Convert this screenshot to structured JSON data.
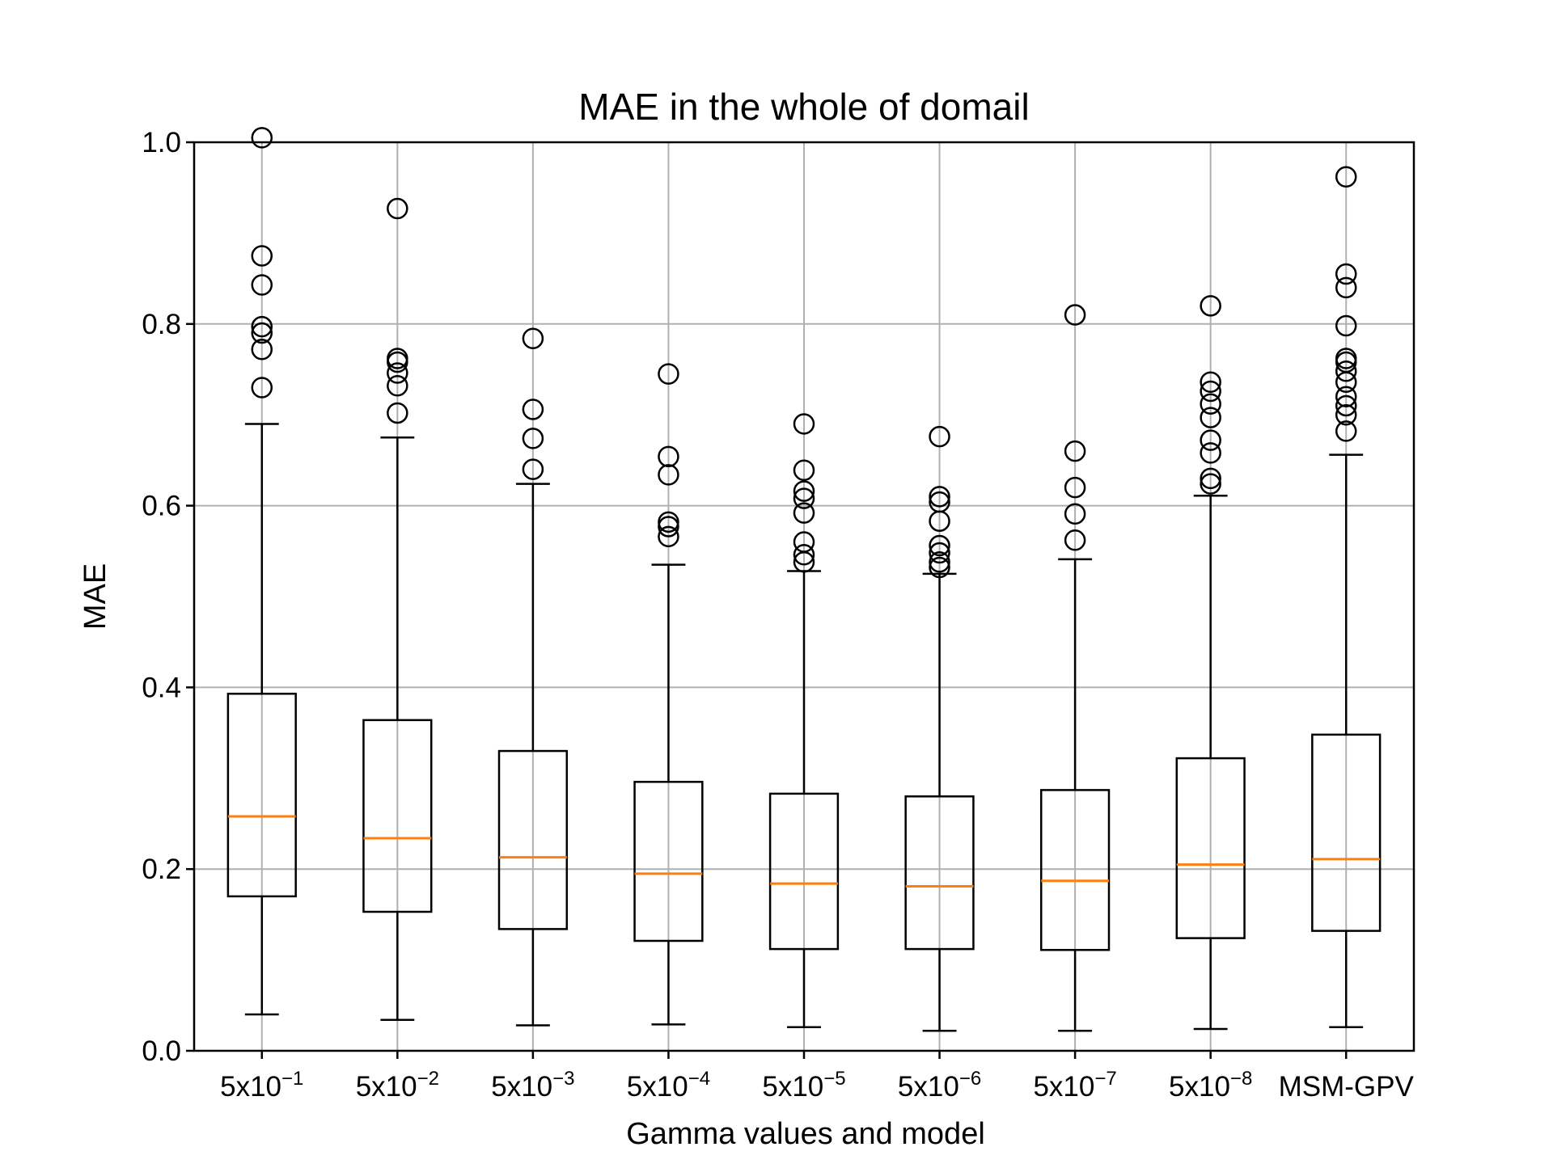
{
  "chart_data": {
    "type": "box",
    "title": "MAE in the whole of domail",
    "xlabel": "Gamma values and model",
    "ylabel": "MAE",
    "ylim": [
      0.0,
      1.0
    ],
    "yticks": [
      "0.0",
      "0.2",
      "0.4",
      "0.6",
      "0.8",
      "1.0"
    ],
    "grid": true,
    "colors": {
      "box": "#000000",
      "median": "#ff7f0e",
      "grid": "#b0b0b0"
    },
    "categories": [
      {
        "base": "5x10",
        "exp": "−1"
      },
      {
        "base": "5x10",
        "exp": "−2"
      },
      {
        "base": "5x10",
        "exp": "−3"
      },
      {
        "base": "5x10",
        "exp": "−4"
      },
      {
        "base": "5x10",
        "exp": "−5"
      },
      {
        "base": "5x10",
        "exp": "−6"
      },
      {
        "base": "5x10",
        "exp": "−7"
      },
      {
        "base": "5x10",
        "exp": "−8"
      },
      {
        "base": "MSM-GPV",
        "exp": ""
      }
    ],
    "boxes": [
      {
        "whislo": 0.04,
        "q1": 0.17,
        "med": 0.258,
        "q3": 0.393,
        "whishi": 0.69,
        "fliers": [
          0.73,
          0.772,
          0.79,
          0.797,
          0.843,
          0.875,
          1.005
        ]
      },
      {
        "whislo": 0.034,
        "q1": 0.153,
        "med": 0.234,
        "q3": 0.364,
        "whishi": 0.675,
        "fliers": [
          0.702,
          0.732,
          0.746,
          0.758,
          0.762,
          0.927
        ]
      },
      {
        "whislo": 0.028,
        "q1": 0.134,
        "med": 0.213,
        "q3": 0.33,
        "whishi": 0.624,
        "fliers": [
          0.64,
          0.674,
          0.706,
          0.784
        ]
      },
      {
        "whislo": 0.029,
        "q1": 0.121,
        "med": 0.195,
        "q3": 0.296,
        "whishi": 0.535,
        "fliers": [
          0.566,
          0.577,
          0.582,
          0.634,
          0.654,
          0.745
        ]
      },
      {
        "whislo": 0.026,
        "q1": 0.112,
        "med": 0.184,
        "q3": 0.283,
        "whishi": 0.528,
        "fliers": [
          0.538,
          0.546,
          0.56,
          0.592,
          0.608,
          0.616,
          0.639,
          0.69
        ]
      },
      {
        "whislo": 0.022,
        "q1": 0.112,
        "med": 0.181,
        "q3": 0.28,
        "whishi": 0.525,
        "fliers": [
          0.532,
          0.538,
          0.548,
          0.556,
          0.583,
          0.604,
          0.61,
          0.676
        ]
      },
      {
        "whislo": 0.022,
        "q1": 0.111,
        "med": 0.187,
        "q3": 0.287,
        "whishi": 0.541,
        "fliers": [
          0.562,
          0.591,
          0.62,
          0.66,
          0.81
        ]
      },
      {
        "whislo": 0.024,
        "q1": 0.124,
        "med": 0.205,
        "q3": 0.322,
        "whishi": 0.611,
        "fliers": [
          0.624,
          0.63,
          0.658,
          0.672,
          0.697,
          0.712,
          0.726,
          0.736,
          0.82
        ]
      },
      {
        "whislo": 0.026,
        "q1": 0.132,
        "med": 0.211,
        "q3": 0.348,
        "whishi": 0.656,
        "fliers": [
          0.682,
          0.7,
          0.71,
          0.72,
          0.736,
          0.748,
          0.758,
          0.762,
          0.798,
          0.84,
          0.855,
          0.962
        ]
      }
    ]
  }
}
